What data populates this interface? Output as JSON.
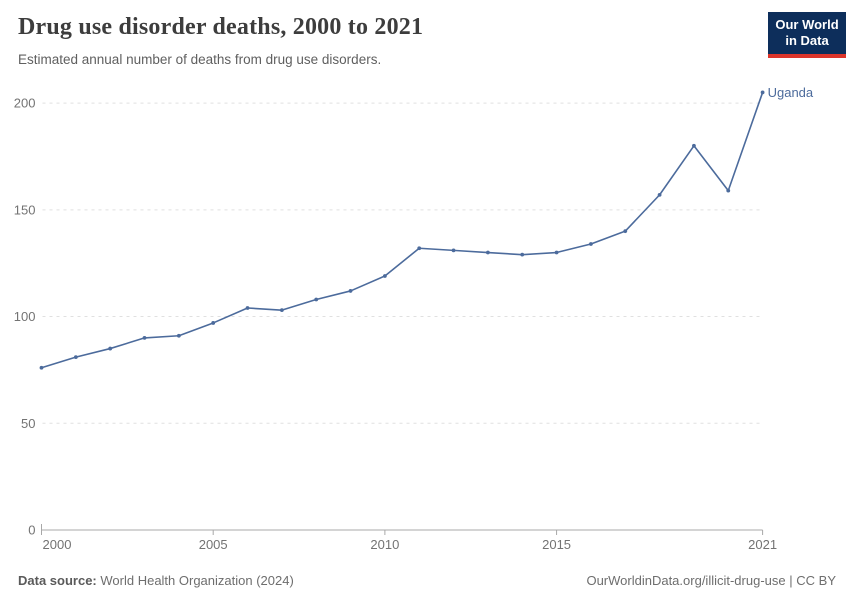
{
  "header": {
    "title": "Drug use disorder deaths, 2000 to 2021",
    "subtitle": "Estimated annual number of deaths from drug use disorders.",
    "logo": {
      "line1": "Our World",
      "line2": "in Data"
    }
  },
  "chart_data": {
    "type": "line",
    "title": "Drug use disorder deaths, 2000 to 2021",
    "xlabel": "",
    "ylabel": "",
    "xlim": [
      2000,
      2021
    ],
    "ylim": [
      0,
      200
    ],
    "grid": true,
    "legend_position": "end-of-line-label",
    "x_ticks": [
      2000,
      2005,
      2010,
      2015,
      2021
    ],
    "y_ticks": [
      0,
      50,
      100,
      150,
      200
    ],
    "series": [
      {
        "name": "Uganda",
        "x": [
          2000,
          2001,
          2002,
          2003,
          2004,
          2005,
          2006,
          2007,
          2008,
          2009,
          2010,
          2011,
          2012,
          2013,
          2014,
          2015,
          2016,
          2017,
          2018,
          2019,
          2020,
          2021
        ],
        "values": [
          76,
          81,
          85,
          90,
          91,
          97,
          104,
          103,
          108,
          112,
          119,
          132,
          131,
          130,
          129,
          130,
          134,
          140,
          157,
          180,
          159,
          205
        ]
      }
    ],
    "entity_label": "Uganda",
    "line_color": "#4c6b9c",
    "grid_color": "#e0e0e0",
    "axis_color": "#a8a8a8",
    "tick_label_color": "#737373"
  },
  "footer": {
    "source_label": "Data source:",
    "source_value": "World Health Organization (2024)",
    "url": "OurWorldinData.org/illicit-drug-use",
    "separator": "|",
    "license": "CC BY"
  }
}
